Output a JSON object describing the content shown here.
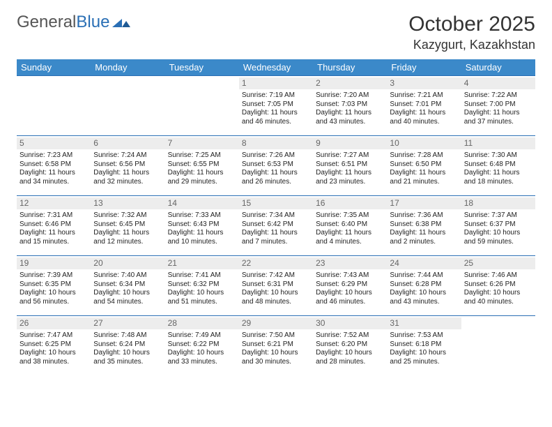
{
  "logo": {
    "text1": "General",
    "text2": "Blue"
  },
  "title": "October 2025",
  "location": "Kazygurt, Kazakhstan",
  "colors": {
    "header_bg": "#3b89c9",
    "border": "#2a6fb5",
    "daynum_bg": "#ededed",
    "text": "#222222"
  },
  "day_headers": [
    "Sunday",
    "Monday",
    "Tuesday",
    "Wednesday",
    "Thursday",
    "Friday",
    "Saturday"
  ],
  "weeks": [
    [
      null,
      null,
      null,
      {
        "n": "1",
        "sr": "7:19 AM",
        "ss": "7:05 PM",
        "dl": "11 hours and 46 minutes."
      },
      {
        "n": "2",
        "sr": "7:20 AM",
        "ss": "7:03 PM",
        "dl": "11 hours and 43 minutes."
      },
      {
        "n": "3",
        "sr": "7:21 AM",
        "ss": "7:01 PM",
        "dl": "11 hours and 40 minutes."
      },
      {
        "n": "4",
        "sr": "7:22 AM",
        "ss": "7:00 PM",
        "dl": "11 hours and 37 minutes."
      }
    ],
    [
      {
        "n": "5",
        "sr": "7:23 AM",
        "ss": "6:58 PM",
        "dl": "11 hours and 34 minutes."
      },
      {
        "n": "6",
        "sr": "7:24 AM",
        "ss": "6:56 PM",
        "dl": "11 hours and 32 minutes."
      },
      {
        "n": "7",
        "sr": "7:25 AM",
        "ss": "6:55 PM",
        "dl": "11 hours and 29 minutes."
      },
      {
        "n": "8",
        "sr": "7:26 AM",
        "ss": "6:53 PM",
        "dl": "11 hours and 26 minutes."
      },
      {
        "n": "9",
        "sr": "7:27 AM",
        "ss": "6:51 PM",
        "dl": "11 hours and 23 minutes."
      },
      {
        "n": "10",
        "sr": "7:28 AM",
        "ss": "6:50 PM",
        "dl": "11 hours and 21 minutes."
      },
      {
        "n": "11",
        "sr": "7:30 AM",
        "ss": "6:48 PM",
        "dl": "11 hours and 18 minutes."
      }
    ],
    [
      {
        "n": "12",
        "sr": "7:31 AM",
        "ss": "6:46 PM",
        "dl": "11 hours and 15 minutes."
      },
      {
        "n": "13",
        "sr": "7:32 AM",
        "ss": "6:45 PM",
        "dl": "11 hours and 12 minutes."
      },
      {
        "n": "14",
        "sr": "7:33 AM",
        "ss": "6:43 PM",
        "dl": "11 hours and 10 minutes."
      },
      {
        "n": "15",
        "sr": "7:34 AM",
        "ss": "6:42 PM",
        "dl": "11 hours and 7 minutes."
      },
      {
        "n": "16",
        "sr": "7:35 AM",
        "ss": "6:40 PM",
        "dl": "11 hours and 4 minutes."
      },
      {
        "n": "17",
        "sr": "7:36 AM",
        "ss": "6:38 PM",
        "dl": "11 hours and 2 minutes."
      },
      {
        "n": "18",
        "sr": "7:37 AM",
        "ss": "6:37 PM",
        "dl": "10 hours and 59 minutes."
      }
    ],
    [
      {
        "n": "19",
        "sr": "7:39 AM",
        "ss": "6:35 PM",
        "dl": "10 hours and 56 minutes."
      },
      {
        "n": "20",
        "sr": "7:40 AM",
        "ss": "6:34 PM",
        "dl": "10 hours and 54 minutes."
      },
      {
        "n": "21",
        "sr": "7:41 AM",
        "ss": "6:32 PM",
        "dl": "10 hours and 51 minutes."
      },
      {
        "n": "22",
        "sr": "7:42 AM",
        "ss": "6:31 PM",
        "dl": "10 hours and 48 minutes."
      },
      {
        "n": "23",
        "sr": "7:43 AM",
        "ss": "6:29 PM",
        "dl": "10 hours and 46 minutes."
      },
      {
        "n": "24",
        "sr": "7:44 AM",
        "ss": "6:28 PM",
        "dl": "10 hours and 43 minutes."
      },
      {
        "n": "25",
        "sr": "7:46 AM",
        "ss": "6:26 PM",
        "dl": "10 hours and 40 minutes."
      }
    ],
    [
      {
        "n": "26",
        "sr": "7:47 AM",
        "ss": "6:25 PM",
        "dl": "10 hours and 38 minutes."
      },
      {
        "n": "27",
        "sr": "7:48 AM",
        "ss": "6:24 PM",
        "dl": "10 hours and 35 minutes."
      },
      {
        "n": "28",
        "sr": "7:49 AM",
        "ss": "6:22 PM",
        "dl": "10 hours and 33 minutes."
      },
      {
        "n": "29",
        "sr": "7:50 AM",
        "ss": "6:21 PM",
        "dl": "10 hours and 30 minutes."
      },
      {
        "n": "30",
        "sr": "7:52 AM",
        "ss": "6:20 PM",
        "dl": "10 hours and 28 minutes."
      },
      {
        "n": "31",
        "sr": "7:53 AM",
        "ss": "6:18 PM",
        "dl": "10 hours and 25 minutes."
      },
      null
    ]
  ],
  "labels": {
    "sunrise": "Sunrise:",
    "sunset": "Sunset:",
    "daylight": "Daylight:"
  }
}
